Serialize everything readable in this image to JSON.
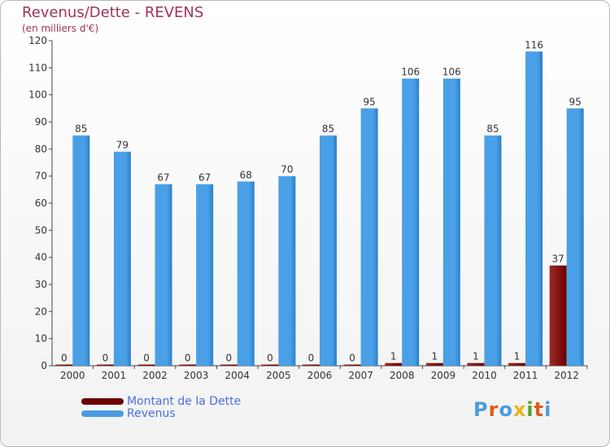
{
  "header": {
    "title": "Revenus/Dette - REVENS",
    "subtitle": "(en milliers d'€)"
  },
  "legend": [
    {
      "label": "Montant de la Dette",
      "color": "#6b0000"
    },
    {
      "label": "Revenus",
      "color": "#4a9be0"
    }
  ],
  "logo": {
    "text": "Proxiti",
    "colors": [
      "#4a9be0",
      "#e05a1a",
      "#4a9be0",
      "#e8b41a",
      "#5aa02c",
      "#e05a1a",
      "#4a9be0"
    ]
  },
  "colors": {
    "debt": "#6b0000",
    "debt_light": "#9b2a2a",
    "revenue": "#4aa0e6",
    "revenue_dark": "#2b7fc8",
    "title": "#a0325a"
  },
  "chart_data": {
    "type": "bar",
    "categories": [
      "2000",
      "2001",
      "2002",
      "2003",
      "2004",
      "2005",
      "2006",
      "2007",
      "2008",
      "2009",
      "2010",
      "2011",
      "2012"
    ],
    "series": [
      {
        "name": "Montant de la Dette",
        "values": [
          0,
          0,
          0,
          0,
          0,
          0,
          0,
          0,
          1,
          1,
          1,
          1,
          37
        ]
      },
      {
        "name": "Revenus",
        "values": [
          85,
          79,
          67,
          67,
          68,
          70,
          85,
          95,
          106,
          106,
          85,
          116,
          95
        ]
      }
    ],
    "ylim": [
      0,
      120
    ],
    "yticks": [
      0,
      10,
      20,
      30,
      40,
      50,
      60,
      70,
      80,
      90,
      100,
      110,
      120
    ],
    "grid": false,
    "legend_position": "bottom-left"
  }
}
